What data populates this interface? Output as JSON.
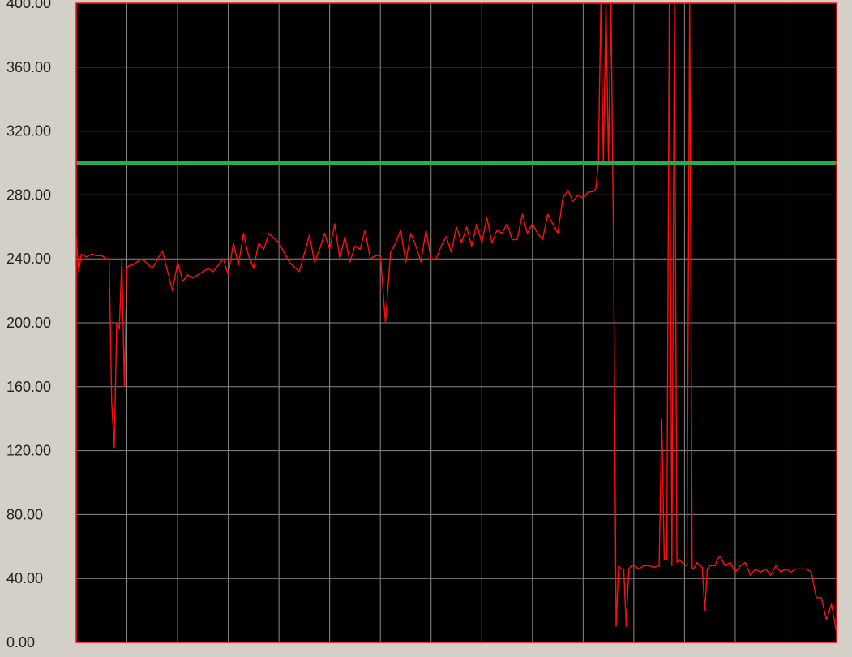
{
  "chart_data": {
    "type": "line",
    "title": "",
    "xlabel": "",
    "ylabel": "",
    "ylim": [
      0,
      400
    ],
    "yticks": [
      "0.00",
      "40.00",
      "80.00",
      "120.00",
      "160.00",
      "200.00",
      "240.00",
      "280.00",
      "320.00",
      "360.00",
      "400.00"
    ],
    "grid": true,
    "threshold": {
      "value": 300,
      "color": "#2eaa4a"
    },
    "colors": {
      "plot_background": "#000000",
      "grid": "#8a8a8a",
      "series": "#ff1010",
      "window": "#d4d0c8"
    },
    "series": [
      {
        "name": "",
        "x": [
          0,
          1,
          2,
          4,
          6,
          8,
          10,
          12,
          13,
          14,
          15,
          16,
          17,
          18,
          19,
          20,
          21,
          22,
          24,
          26,
          30,
          34,
          38,
          40,
          42,
          44,
          46,
          48,
          50,
          52,
          54,
          56,
          58,
          60,
          62,
          64,
          66,
          68,
          70,
          72,
          74,
          76,
          80,
          84,
          88,
          92,
          94,
          96,
          98,
          100,
          102,
          104,
          106,
          108,
          110,
          112,
          114,
          116,
          118,
          120,
          122,
          124,
          126,
          128,
          130,
          132,
          134,
          136,
          138,
          140,
          142,
          144,
          146,
          148,
          150,
          152,
          154,
          156,
          158,
          160,
          162,
          164,
          166,
          168,
          170,
          172,
          174,
          176,
          178,
          180,
          182,
          184,
          186,
          188,
          190,
          192,
          194,
          196,
          198,
          200,
          202,
          204,
          205,
          206,
          207,
          208,
          209,
          210,
          211,
          212,
          213,
          214,
          215,
          216,
          217,
          218,
          219,
          220,
          222,
          224,
          226,
          228,
          230,
          231,
          232,
          233,
          234,
          235,
          236,
          237,
          238,
          239,
          240,
          241,
          242,
          243,
          244,
          245,
          246,
          247,
          248,
          249,
          250,
          251,
          252,
          253,
          254,
          256,
          258,
          260,
          262,
          264,
          266,
          268,
          270,
          272,
          274,
          276,
          278,
          280,
          282,
          284,
          286,
          288,
          290,
          292,
          294,
          296,
          298,
          300
        ],
        "values": [
          254,
          232,
          243,
          241,
          243,
          242,
          242,
          240,
          240,
          150,
          122,
          200,
          196,
          240,
          160,
          234,
          236,
          236,
          238,
          240,
          234,
          245,
          220,
          238,
          226,
          230,
          228,
          230,
          232,
          234,
          232,
          236,
          240,
          230,
          250,
          236,
          256,
          242,
          234,
          250,
          246,
          256,
          250,
          238,
          232,
          255,
          238,
          246,
          256,
          246,
          262,
          240,
          254,
          238,
          248,
          246,
          258,
          240,
          242,
          242,
          200,
          244,
          250,
          258,
          238,
          256,
          248,
          238,
          258,
          240,
          240,
          248,
          254,
          244,
          260,
          250,
          260,
          248,
          262,
          250,
          266,
          250,
          258,
          256,
          262,
          252,
          252,
          268,
          256,
          262,
          256,
          252,
          268,
          262,
          256,
          278,
          283,
          276,
          280,
          278,
          282,
          282,
          284,
          300,
          400,
          300,
          400,
          300,
          400,
          244,
          10,
          48,
          46,
          46,
          10,
          46,
          48,
          48,
          46,
          48,
          48,
          47,
          48,
          140,
          52,
          52,
          400,
          48,
          400,
          50,
          52,
          50,
          48,
          48,
          400,
          46,
          47,
          50,
          48,
          47,
          20,
          46,
          48,
          48,
          48,
          52,
          54,
          48,
          50,
          44,
          48,
          50,
          42,
          46,
          44,
          46,
          42,
          48,
          44,
          46,
          44,
          46,
          46,
          46,
          44,
          28,
          28,
          14,
          24,
          6
        ]
      }
    ]
  }
}
